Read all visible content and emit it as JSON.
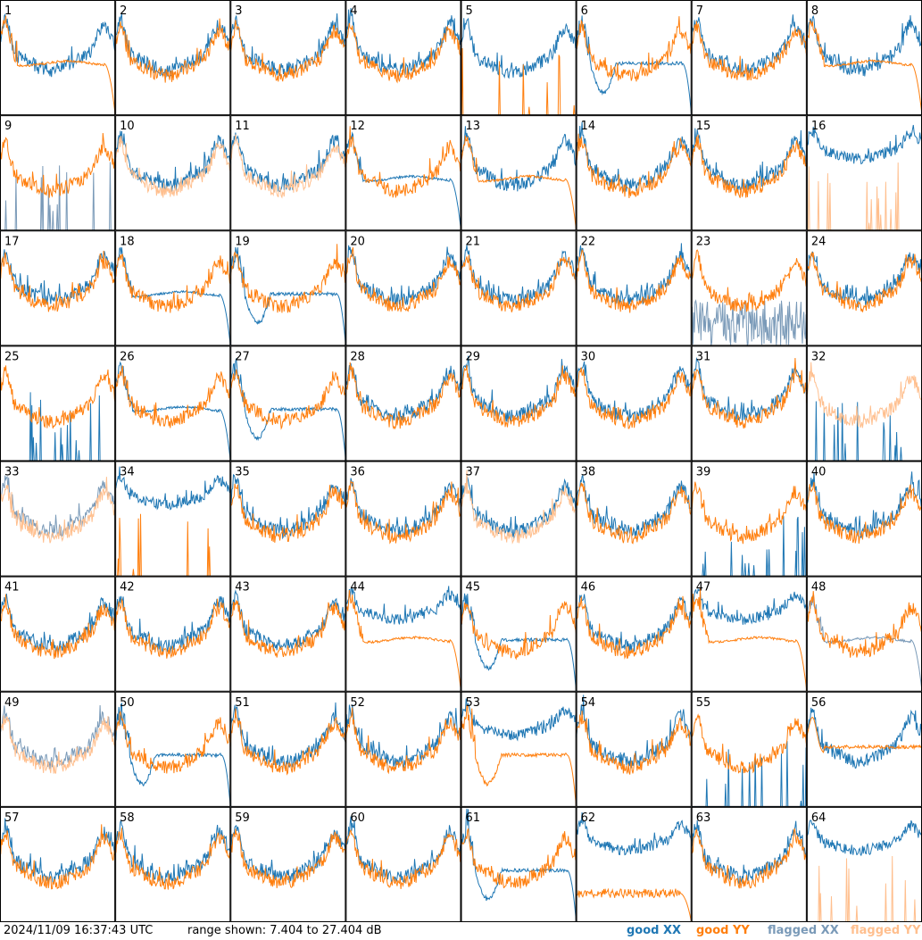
{
  "chart_data": {
    "type": "line",
    "title": "",
    "ylim_db": [
      7.404,
      27.404
    ],
    "panel_count": 64,
    "panel_ids": [
      "1",
      "2",
      "3",
      "4",
      "5",
      "6",
      "7",
      "8",
      "9",
      "10",
      "11",
      "12",
      "13",
      "14",
      "15",
      "16",
      "17",
      "18",
      "19",
      "20",
      "21",
      "22",
      "23",
      "24",
      "25",
      "26",
      "27",
      "28",
      "29",
      "30",
      "31",
      "32",
      "33",
      "34",
      "35",
      "36",
      "37",
      "38",
      "39",
      "40",
      "41",
      "42",
      "43",
      "44",
      "45",
      "46",
      "47",
      "48",
      "49",
      "50",
      "51",
      "52",
      "53",
      "54",
      "55",
      "56",
      "57",
      "58",
      "59",
      "60",
      "61",
      "62",
      "63",
      "64"
    ],
    "series": [
      {
        "name": "good XX",
        "color": "#1f77b4"
      },
      {
        "name": "good YY",
        "color": "#ff7f0e"
      },
      {
        "name": "flagged XX",
        "color": "#7a9ab8"
      },
      {
        "name": "flagged YY",
        "color": "#ffbf8e"
      }
    ],
    "panels": {
      "1": {
        "xx": "normal",
        "yy": "flat_drop"
      },
      "2": {
        "xx": "normal",
        "yy": "normal"
      },
      "3": {
        "xx": "normal",
        "yy": "normal"
      },
      "4": {
        "xx": "normal",
        "yy": "normal"
      },
      "5": {
        "xx": "high_dip",
        "yy": "spikes_low"
      },
      "6": {
        "xx": "dip_drop",
        "yy": "normal"
      },
      "7": {
        "xx": "normal",
        "yy": "normal"
      },
      "8": {
        "xx": "normal",
        "yy": "flat_drop"
      },
      "9": {
        "xx": "spikes_low",
        "yy": "normal",
        "xxFlagged": true
      },
      "10": {
        "xx": "normal",
        "yy": "normal",
        "yyFlagged": true
      },
      "11": {
        "xx": "normal",
        "yy": "normal",
        "yyFlagged": true
      },
      "12": {
        "xx": "flat_drop",
        "yy": "normal"
      },
      "13": {
        "xx": "normal",
        "yy": "flat_drop"
      },
      "14": {
        "xx": "normal",
        "yy": "normal"
      },
      "15": {
        "xx": "normal",
        "yy": "normal"
      },
      "16": {
        "xx": "high",
        "yy": "spikes_low",
        "yyFlagged": true
      },
      "17": {
        "xx": "normal",
        "yy": "normal"
      },
      "18": {
        "xx": "flat_drop",
        "yy": "normal"
      },
      "19": {
        "xx": "dip_drop",
        "yy": "normal"
      },
      "20": {
        "xx": "normal",
        "yy": "normal"
      },
      "21": {
        "xx": "normal",
        "yy": "normal"
      },
      "22": {
        "xx": "normal",
        "yy": "normal"
      },
      "23": {
        "xx": "noisy_low",
        "yy": "normal",
        "xxFlagged": true
      },
      "24": {
        "xx": "normal",
        "yy": "normal"
      },
      "25": {
        "xx": "spikes_low",
        "yy": "normal"
      },
      "26": {
        "xx": "flat_drop",
        "yy": "normal"
      },
      "27": {
        "xx": "dip_drop",
        "yy": "normal"
      },
      "28": {
        "xx": "normal",
        "yy": "normal"
      },
      "29": {
        "xx": "normal",
        "yy": "normal"
      },
      "30": {
        "xx": "normal",
        "yy": "normal"
      },
      "31": {
        "xx": "normal",
        "yy": "normal"
      },
      "32": {
        "xx": "spikes_low",
        "yy": "normal",
        "yyFlagged": true
      },
      "33": {
        "xx": "normal",
        "yy": "normal",
        "xxFlagged": true,
        "yyFlagged": true
      },
      "34": {
        "xx": "high",
        "yy": "spikes_low"
      },
      "35": {
        "xx": "normal",
        "yy": "normal"
      },
      "36": {
        "xx": "normal",
        "yy": "normal"
      },
      "37": {
        "xx": "normal",
        "yy": "normal",
        "yyFlagged": true
      },
      "38": {
        "xx": "normal",
        "yy": "normal"
      },
      "39": {
        "xx": "spikes_low",
        "yy": "normal"
      },
      "40": {
        "xx": "normal",
        "yy": "normal"
      },
      "41": {
        "xx": "normal",
        "yy": "normal"
      },
      "42": {
        "xx": "normal",
        "yy": "normal"
      },
      "43": {
        "xx": "normal",
        "yy": "normal"
      },
      "44": {
        "xx": "high",
        "yy": "flat_drop"
      },
      "45": {
        "xx": "dip_drop",
        "yy": "normal"
      },
      "46": {
        "xx": "normal",
        "yy": "normal"
      },
      "47": {
        "xx": "high",
        "yy": "flat_drop"
      },
      "48": {
        "xx": "flat_drop",
        "yy": "normal",
        "xxFlagged": true
      },
      "49": {
        "xx": "normal",
        "yy": "normal",
        "xxFlagged": true,
        "yyFlagged": true
      },
      "50": {
        "xx": "dip_drop",
        "yy": "normal"
      },
      "51": {
        "xx": "normal",
        "yy": "normal"
      },
      "52": {
        "xx": "normal",
        "yy": "normal"
      },
      "53": {
        "xx": "high",
        "yy": "dip_drop"
      },
      "54": {
        "xx": "normal",
        "yy": "normal"
      },
      "55": {
        "xx": "spikes_low",
        "yy": "normal"
      },
      "56": {
        "xx": "normal",
        "yy": "flat"
      },
      "57": {
        "xx": "normal",
        "yy": "normal"
      },
      "58": {
        "xx": "normal",
        "yy": "normal"
      },
      "59": {
        "xx": "normal",
        "yy": "normal"
      },
      "60": {
        "xx": "normal",
        "yy": "normal"
      },
      "61": {
        "xx": "dip_drop",
        "yy": "normal"
      },
      "62": {
        "xx": "high",
        "yy": "low_drop"
      },
      "63": {
        "xx": "normal",
        "yy": "normal"
      },
      "64": {
        "xx": "high",
        "yy": "spikes_low",
        "yyFlagged": true
      }
    }
  },
  "footer": {
    "timestamp": "2024/11/09 16:37:43 UTC",
    "range_text": "range shown: 7.404 to 27.404 dB",
    "legend": {
      "good_xx": "good XX",
      "good_yy": "good YY",
      "flagged_xx": "flagged XX",
      "flagged_yy": "flagged YY"
    }
  }
}
